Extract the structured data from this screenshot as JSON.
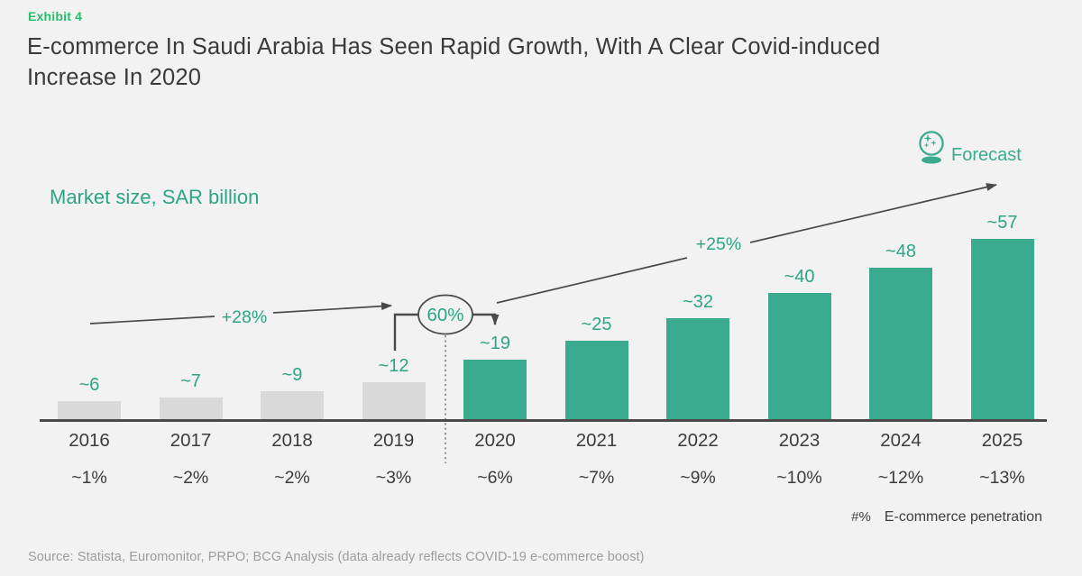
{
  "exhibit_label": "Exhibit 4",
  "title": "E-commerce In Saudi Arabia Has Seen Rapid Growth, With A Clear Covid-induced Increase In 2020",
  "title_lines": {
    "line1": "E-commerce In Saudi Arabia Has Seen Rapid Growth, With A Clear Covid-induced",
    "line2": "Increase In 2020"
  },
  "axis_unit_label": "Market size, SAR billion",
  "forecast_legend": {
    "icon": "crystal-ball-icon",
    "label": "Forecast"
  },
  "annotations": {
    "growth_2016_2019": "+28%",
    "growth_2019_2020": "60%",
    "growth_2020_2025": "+25%"
  },
  "footnote": {
    "symbol": "#%",
    "label": "E-commerce penetration"
  },
  "source": "Source: Statista, Euromonitor, PRPO; BCG Analysis (data already reflects COVID-19 e-commerce boost)",
  "colors": {
    "background": "#f2f2f2",
    "bar_historical": "#d9d9d9",
    "bar_highlight": "#3aab8e",
    "accent_text": "#2ca586",
    "exhibit_green": "#27bd6c",
    "title_text": "#3a3a3a",
    "axis_dark": "#4a4a4a",
    "source_gray": "#9c9c9c"
  },
  "chart_data": {
    "type": "bar",
    "title": "Market size, SAR billion",
    "unit": "SAR billion",
    "categories": [
      "2016",
      "2017",
      "2018",
      "2019",
      "2020",
      "2021",
      "2022",
      "2023",
      "2024",
      "2025"
    ],
    "series": [
      {
        "name": "Market size, SAR billion",
        "values": [
          6,
          7,
          9,
          12,
          19,
          25,
          32,
          40,
          48,
          57
        ],
        "display_labels": [
          "~6",
          "~7",
          "~9",
          "~12",
          "~19",
          "~25",
          "~32",
          "~40",
          "~48",
          "~57"
        ]
      },
      {
        "name": "E-commerce penetration",
        "values_pct": [
          1,
          2,
          2,
          3,
          6,
          7,
          9,
          10,
          12,
          13
        ],
        "display_labels": [
          "~1%",
          "~2%",
          "~2%",
          "~3%",
          "~6%",
          "~7%",
          "~9%",
          "~10%",
          "~12%",
          "~13%"
        ]
      }
    ],
    "segments": {
      "historical_gray_years": [
        "2016",
        "2017",
        "2018",
        "2019"
      ],
      "highlight_green_years": [
        "2020",
        "2021",
        "2022",
        "2023",
        "2024",
        "2025"
      ]
    },
    "annotations": [
      {
        "label": "+28%",
        "span": "2016 to 2019",
        "style": "arrow"
      },
      {
        "label": "60%",
        "span": "2019 to 2020",
        "style": "circled-elbow"
      },
      {
        "label": "+25%",
        "span": "2020 to 2025",
        "style": "arrow-to-forecast"
      }
    ],
    "legend": [
      {
        "label": "Forecast",
        "position": "top-right"
      }
    ],
    "ylim": [
      0,
      60
    ],
    "grid": false,
    "x_axis_rows": [
      "year",
      "penetration_pct"
    ]
  }
}
